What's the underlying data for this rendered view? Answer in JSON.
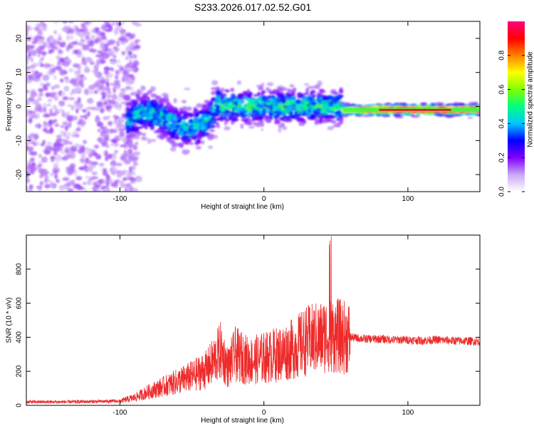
{
  "title": "S233.2026.017.02.52.G01",
  "chart_data": [
    {
      "type": "heatmap",
      "xlabel": "Height of straight line (km)",
      "ylabel": "Frequency (Hz)",
      "xlim": [
        -165,
        150
      ],
      "ylim": [
        -25,
        25
      ],
      "x_ticks": [
        -100,
        0,
        100
      ],
      "y_ticks": [
        -20,
        -10,
        0,
        10,
        20
      ],
      "grid": false,
      "colorbar": {
        "label": "Normalized spectral amplitude",
        "range": [
          0,
          1
        ],
        "ticks": [
          0.0,
          0.2,
          0.4,
          0.6,
          0.8
        ],
        "tick_labels": [
          "0.0",
          "0.2",
          "0.4",
          "0.6",
          "0.8"
        ],
        "colors": [
          "#ffffff",
          "#c9a8f5",
          "#8000ff",
          "#0000ff",
          "#00c8ff",
          "#00ff80",
          "#80ff00",
          "#ffff00",
          "#ff8000",
          "#ff0000",
          "#ff0080"
        ]
      },
      "regions": [
        {
          "x": [
            -165,
            -95
          ],
          "freq_center": 0,
          "freq_spread": 25,
          "amplitude": 0.05,
          "description": "noise"
        },
        {
          "x": [
            -95,
            -30
          ],
          "freq_center": -4,
          "freq_spread": 3,
          "amplitude": 0.3
        },
        {
          "x": [
            -30,
            55
          ],
          "freq_center": 0,
          "freq_spread": 2.5,
          "amplitude": 0.35
        },
        {
          "x": [
            55,
            150
          ],
          "freq_center": -1,
          "freq_spread": 0.8,
          "amplitude": 0.9
        }
      ]
    },
    {
      "type": "line",
      "xlabel": "Height of straight line (km)",
      "ylabel": "SNR (10 * v/v)",
      "xlim": [
        -165,
        150
      ],
      "ylim": [
        0,
        1000
      ],
      "x_ticks": [
        -100,
        0,
        100
      ],
      "y_ticks": [
        0,
        200,
        400,
        600,
        800
      ],
      "grid": false,
      "series": [
        {
          "color": "#ee2a2a",
          "x": [
            -165,
            -140,
            -120,
            -100,
            -90,
            -80,
            -70,
            -60,
            -50,
            -40,
            -35,
            -30,
            -25,
            -20,
            -15,
            -10,
            0,
            10,
            20,
            30,
            40,
            45,
            50,
            55,
            60,
            70,
            80,
            90,
            100,
            110,
            120,
            130,
            140,
            150
          ],
          "y": [
            20,
            20,
            22,
            25,
            45,
            80,
            110,
            140,
            170,
            210,
            260,
            320,
            220,
            300,
            280,
            260,
            280,
            300,
            330,
            380,
            400,
            420,
            410,
            400,
            400,
            390,
            390,
            385,
            385,
            380,
            385,
            380,
            378,
            375
          ]
        }
      ]
    }
  ]
}
